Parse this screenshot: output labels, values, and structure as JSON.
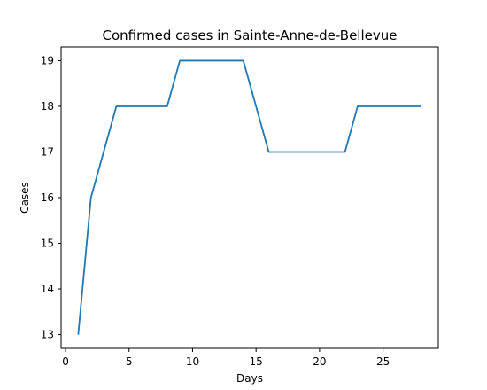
{
  "chart_data": {
    "type": "line",
    "title": "Confirmed cases in Sainte-Anne-de-Bellevue",
    "xlabel": "Days",
    "ylabel": "Cases",
    "xlim": [
      -0.35,
      29.35
    ],
    "ylim": [
      12.7,
      19.3
    ],
    "xticks": [
      0,
      5,
      10,
      15,
      20,
      25
    ],
    "yticks": [
      13,
      14,
      15,
      16,
      17,
      18,
      19
    ],
    "grid": false,
    "series": [
      {
        "color": "#1f77b4",
        "x": [
          1,
          2,
          3,
          4,
          5,
          6,
          7,
          8,
          9,
          10,
          11,
          12,
          13,
          14,
          15,
          16,
          17,
          18,
          19,
          20,
          21,
          22,
          23,
          24,
          25,
          26,
          27,
          28
        ],
        "y": [
          13,
          16,
          17,
          18,
          18,
          18,
          18,
          18,
          19,
          19,
          19,
          19,
          19,
          19,
          18,
          17,
          17,
          17,
          17,
          17,
          17,
          17,
          18,
          18,
          18,
          18,
          18,
          18
        ]
      }
    ]
  }
}
